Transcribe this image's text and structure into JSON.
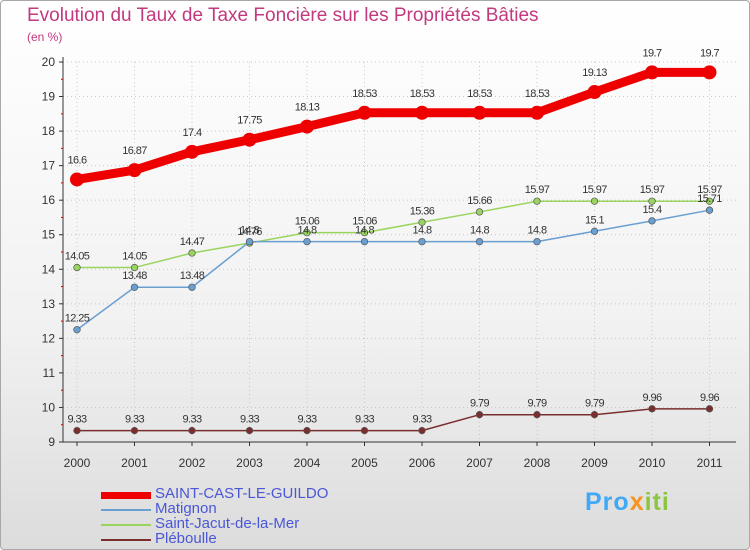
{
  "chart_data": {
    "type": "line",
    "title": "Evolution du Taux de Taxe Foncière sur les Propriétés Bâties",
    "ylabel": "(en %)",
    "xlabel": "",
    "ylim": [
      9,
      20
    ],
    "yticks": [
      "9",
      "10",
      "11",
      "12",
      "13",
      "14",
      "15",
      "16",
      "17",
      "18",
      "19",
      "20"
    ],
    "categories": [
      "2000",
      "2001",
      "2002",
      "2003",
      "2004",
      "2005",
      "2006",
      "2007",
      "2008",
      "2009",
      "2010",
      "2011"
    ],
    "series": [
      {
        "name": "SAINT-CAST-LE-GUILDO",
        "color": "#ee0000",
        "values": [
          16.6,
          16.87,
          17.4,
          17.75,
          18.13,
          18.53,
          18.53,
          18.53,
          18.53,
          19.13,
          19.7,
          19.7
        ],
        "labels": [
          "16.6",
          "16.87",
          "17.4",
          "17.75",
          "18.13",
          "18.53",
          "18.53",
          "18.53",
          "18.53",
          "19.13",
          "19.7",
          "19.7"
        ]
      },
      {
        "name": "Matignon",
        "color": "#6a9fd2",
        "values": [
          12.25,
          13.48,
          13.48,
          14.8,
          14.8,
          14.8,
          14.8,
          14.8,
          14.8,
          15.1,
          15.4,
          15.71
        ],
        "labels": [
          "12.25",
          "13.48",
          "13.48",
          "14.8",
          "14.8",
          "14.8",
          "14.8",
          "14.8",
          "14.8",
          "15.1",
          "15.4",
          "15.71"
        ]
      },
      {
        "name": "Saint-Jacut-de-la-Mer",
        "color": "#99d55e",
        "values": [
          14.05,
          14.05,
          14.47,
          14.76,
          15.06,
          15.06,
          15.36,
          15.66,
          15.97,
          15.97,
          15.97,
          15.97
        ],
        "labels": [
          "14.05",
          "14.05",
          "14.47",
          "14.76",
          "15.06",
          "15.06",
          "15.36",
          "15.66",
          "15.97",
          "15.97",
          "15.97",
          "15.97"
        ]
      },
      {
        "name": "Pléboulle",
        "color": "#7b2e2e",
        "values": [
          9.33,
          9.33,
          9.33,
          9.33,
          9.33,
          9.33,
          9.33,
          9.79,
          9.79,
          9.79,
          9.96,
          9.96
        ],
        "labels": [
          "9.33",
          "9.33",
          "9.33",
          "9.33",
          "9.33",
          "9.33",
          "9.33",
          "9.79",
          "9.79",
          "9.79",
          "9.96",
          "9.96"
        ]
      }
    ]
  },
  "logo": {
    "parts": [
      "Pro",
      "x",
      "iti"
    ],
    "colors": [
      "#3fa9f5",
      "#f7931e",
      "#8cc63f"
    ]
  }
}
